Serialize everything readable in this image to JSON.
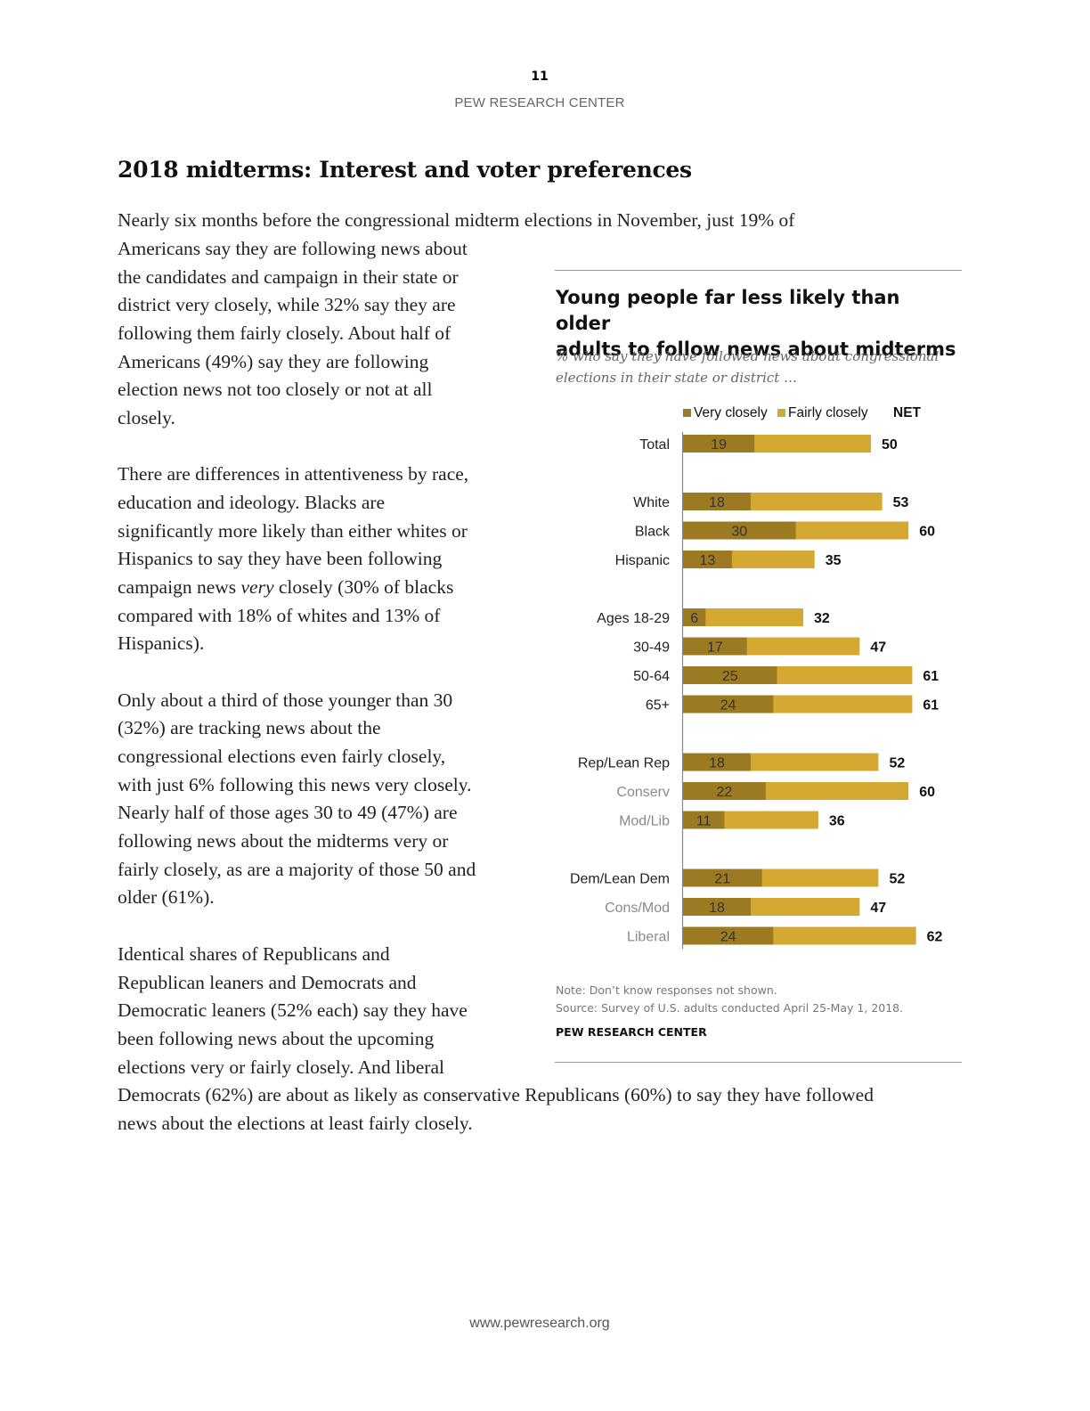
{
  "header": {
    "page_number": "11",
    "org": "PEW RESEARCH CENTER"
  },
  "section_title": "2018 midterms: Interest and voter preferences",
  "paragraphs": {
    "p1": {
      "line1": "Nearly six months before the congressional midterm elections in November, just 19% of",
      "line2": "Americans say they are following news about",
      "line3": "the candidates and campaign in their state or",
      "line4": "district very closely, while 32% say they are",
      "line5": "following them fairly closely. About half of",
      "line6": "Americans (49%) say they are following",
      "line7": "election news not too closely or not at all",
      "line8": "closely."
    },
    "p2": {
      "line1": "There are differences in attentiveness by race,",
      "line2": "education and ideology. Blacks are",
      "line3": "significantly more likely than either whites or",
      "line4": "Hispanics to say they have been following",
      "line5_pre": "campaign news ",
      "line5_em": "very",
      "line5_post": " closely (30% of blacks",
      "line6": "compared with 18% of whites and 13% of",
      "line7": "Hispanics)."
    },
    "p3": {
      "line1": "Only about a third of those younger than 30",
      "line2": "(32%) are tracking news about the",
      "line3": "congressional elections even fairly closely,",
      "line4": "with just 6% following this news very closely.",
      "line5": "Nearly half of those ages 30 to 49 (47%) are",
      "line6": "following news about the midterms very or",
      "line7": "fairly closely, as are a majority of those 50 and",
      "line8": "older (61%)."
    },
    "p4": {
      "line1": "Identical shares of Republicans and",
      "line2": "Republican leaners and Democrats and",
      "line3": "Democratic leaners (52% each) say they have",
      "line4": "been following news about the upcoming",
      "line5": "elections very or fairly closely. And liberal",
      "line6": "Democrats (62%) are about as likely as conservative Republicans (60%) to say they have followed",
      "line7": "news about the elections at least fairly closely."
    }
  },
  "chart": {
    "title_line1": "Young people far less likely than older",
    "title_line2": "adults to follow news about midterms",
    "subtitle_line1": "% who say they have followed news about congressional",
    "subtitle_line2": "elections in their state or district …",
    "note": "Note: Don’t know responses not shown.",
    "source": "Source: Survey of U.S. adults conducted April 25-May 1, 2018.",
    "source_org": "PEW RESEARCH CENTER"
  },
  "chart_data": {
    "type": "bar",
    "orientation": "horizontal",
    "stacked": true,
    "legend": [
      "Very closely",
      "Fairly closely",
      "NET"
    ],
    "legend_position": "top",
    "colors": {
      "very": "#9c7a22",
      "fairly": "#d5a832",
      "axis": "#888888"
    },
    "groups": [
      {
        "rows": [
          {
            "label": "Total",
            "very": 19,
            "net": 50,
            "style": "primary"
          }
        ]
      },
      {
        "rows": [
          {
            "label": "White",
            "very": 18,
            "net": 53,
            "style": "primary"
          },
          {
            "label": "Black",
            "very": 30,
            "net": 60,
            "style": "primary"
          },
          {
            "label": "Hispanic",
            "very": 13,
            "net": 35,
            "style": "primary"
          }
        ]
      },
      {
        "rows": [
          {
            "label": "Ages 18-29",
            "very": 6,
            "net": 32,
            "style": "primary"
          },
          {
            "label": "30-49",
            "very": 17,
            "net": 47,
            "style": "primary"
          },
          {
            "label": "50-64",
            "very": 25,
            "net": 61,
            "style": "primary"
          },
          {
            "label": "65+",
            "very": 24,
            "net": 61,
            "style": "primary"
          }
        ]
      },
      {
        "rows": [
          {
            "label": "Rep/Lean Rep",
            "very": 18,
            "net": 52,
            "style": "primary"
          },
          {
            "label": "Conserv",
            "very": 22,
            "net": 60,
            "style": "secondary"
          },
          {
            "label": "Mod/Lib",
            "very": 11,
            "net": 36,
            "style": "secondary"
          }
        ]
      },
      {
        "rows": [
          {
            "label": "Dem/Lean Dem",
            "very": 21,
            "net": 52,
            "style": "primary"
          },
          {
            "label": "Cons/Mod",
            "very": 18,
            "net": 47,
            "style": "secondary"
          },
          {
            "label": "Liberal",
            "very": 24,
            "net": 62,
            "style": "secondary"
          }
        ]
      }
    ]
  },
  "footer": "www.pewresearch.org"
}
